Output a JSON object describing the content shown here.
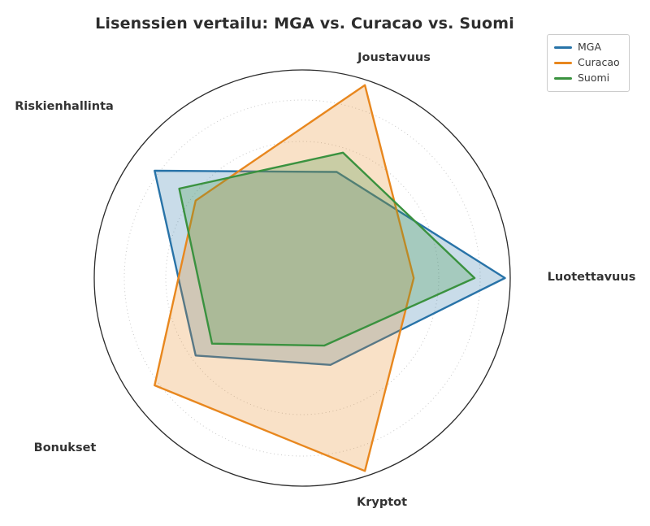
{
  "title": "Lisenssien vertailu: MGA vs. Curacao vs. Suomi",
  "chart_data": {
    "type": "radar",
    "categories": [
      "Luotettavuus",
      "Joustavuus",
      "Riskienhallinta",
      "Bonukset",
      "Kryptot"
    ],
    "series": [
      {
        "name": "MGA",
        "color": "#2873a8",
        "values": [
          10,
          5.5,
          9,
          6.5,
          4.5
        ]
      },
      {
        "name": "Curacao",
        "color": "#e8871e",
        "values": [
          5.5,
          10,
          6.5,
          9,
          10
        ]
      },
      {
        "name": "Suomi",
        "color": "#3a923f",
        "values": [
          8.5,
          6.5,
          7.5,
          5.5,
          3.5
        ]
      }
    ],
    "scale": {
      "min": 0,
      "max": 10
    },
    "start_angle_deg": 0,
    "direction": "counterclockwise",
    "grid": "dotted concentric circles, no radial spokes, no tick labels",
    "legend_position": "top-right",
    "fill_alpha": 0.25,
    "title": "Lisenssien vertailu: MGA vs. Curacao vs. Suomi"
  }
}
